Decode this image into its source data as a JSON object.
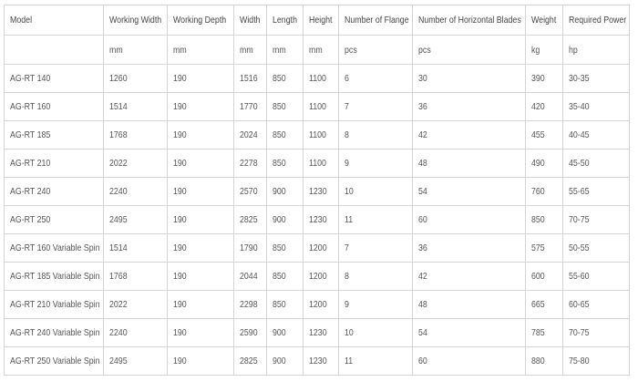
{
  "table": {
    "header": [
      "Model",
      "Working Width",
      "Working Depth",
      "Width",
      "Length",
      "Height",
      "Number of Flange",
      "Number of Horizontal Blades",
      "Weight",
      "Required Power"
    ],
    "units": [
      "mm",
      "mm",
      "mm",
      "mm",
      "mm",
      "pcs",
      "pcs",
      "kg",
      "hp"
    ],
    "rows": [
      [
        "AG-RT 140",
        "1260",
        "190",
        "1516",
        "850",
        "1100",
        "6",
        "30",
        "390",
        "30-35"
      ],
      [
        "AG-RT 160",
        "1514",
        "190",
        "1770",
        "850",
        "1100",
        "7",
        "36",
        "420",
        "35-40"
      ],
      [
        "AG-RT 185",
        "1768",
        "190",
        "2024",
        "850",
        "1100",
        "8",
        "42",
        "455",
        "40-45"
      ],
      [
        "AG-RT 210",
        "2022",
        "190",
        "2278",
        "850",
        "1100",
        "9",
        "48",
        "490",
        "45-50"
      ],
      [
        "AG-RT 240",
        "2240",
        "190",
        "2570",
        "900",
        "1230",
        "10",
        "54",
        "760",
        "55-65"
      ],
      [
        "AG-RT 250",
        "2495",
        "190",
        "2825",
        "900",
        "1230",
        "11",
        "60",
        "850",
        "70-75"
      ],
      [
        "AG-RT 160 Variable Spin",
        "1514",
        "190",
        "1790",
        "850",
        "1200",
        "7",
        "36",
        "575",
        "50-55"
      ],
      [
        "AG-RT 185 Variable Spin",
        "1768",
        "190",
        "2044",
        "850",
        "1200",
        "8",
        "42",
        "600",
        "55-60"
      ],
      [
        "AG-RT 210 Variable Spin",
        "2022",
        "190",
        "2298",
        "850",
        "1200",
        "9",
        "48",
        "665",
        "60-65"
      ],
      [
        "AG-RT 240 Variable Spin",
        "2240",
        "190",
        "2590",
        "900",
        "1230",
        "10",
        "54",
        "785",
        "70-75"
      ],
      [
        "AG-RT 250 Variable Spin",
        "2495",
        "190",
        "2825",
        "900",
        "1230",
        "11",
        "60",
        "880",
        "75-80"
      ]
    ]
  }
}
